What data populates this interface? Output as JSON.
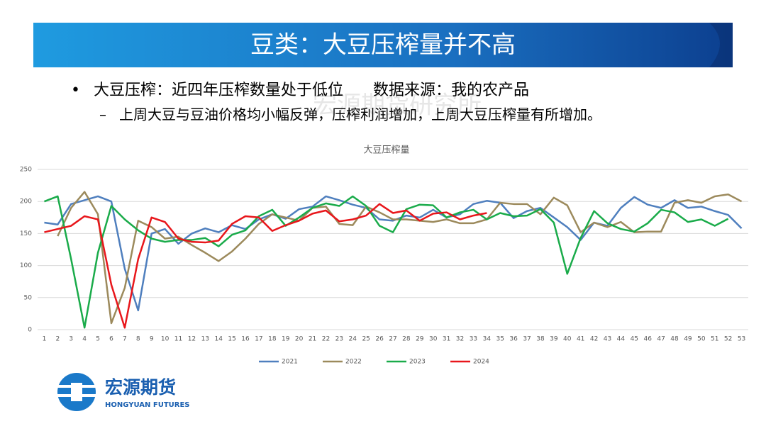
{
  "header": {
    "title": "豆类：大豆压榨量并不高"
  },
  "bullets": {
    "main": "大豆压榨：近四年压榨数量处于低位      数据来源：我的农产品",
    "sub": "上周大豆与豆油价格均小幅反弹，压榨利润增加，上周大豆压榨量有所增加。"
  },
  "watermark": "宏源期货研究所",
  "logo": {
    "name": "宏源期货",
    "english": "HONGYUAN FUTURES"
  },
  "chart_data": {
    "type": "line",
    "title": "大豆压榨量",
    "categories": [
      1,
      2,
      3,
      4,
      5,
      6,
      7,
      8,
      9,
      10,
      11,
      12,
      13,
      14,
      15,
      16,
      17,
      18,
      19,
      20,
      21,
      22,
      23,
      24,
      25,
      26,
      27,
      28,
      29,
      30,
      31,
      32,
      33,
      34,
      35,
      36,
      37,
      38,
      39,
      40,
      41,
      42,
      43,
      44,
      45,
      46,
      47,
      48,
      49,
      50,
      51,
      52,
      53
    ],
    "ylim": [
      0,
      250
    ],
    "yticks": [
      0,
      50,
      100,
      150,
      200,
      250
    ],
    "grid": true,
    "legend": "bottom",
    "series": [
      {
        "name": "2021",
        "color": "#4f7fbe",
        "values": [
          167,
          164,
          196,
          202,
          208,
          200,
          95,
          30,
          150,
          157,
          134,
          150,
          158,
          152,
          163,
          157,
          172,
          180,
          173,
          188,
          192,
          208,
          202,
          195,
          190,
          172,
          170,
          178,
          175,
          187,
          175,
          180,
          196,
          201,
          198,
          174,
          185,
          190,
          175,
          160,
          140,
          167,
          162,
          190,
          207,
          195,
          190,
          202,
          190,
          192,
          185,
          179,
          158
        ]
      },
      {
        "name": "2022",
        "color": "#9c8a5c",
        "values": [
          null,
          146,
          190,
          215,
          180,
          10,
          65,
          170,
          160,
          142,
          145,
          132,
          120,
          107,
          122,
          142,
          165,
          180,
          175,
          170,
          190,
          192,
          165,
          163,
          192,
          183,
          172,
          172,
          170,
          168,
          172,
          166,
          166,
          172,
          198,
          196,
          196,
          180,
          206,
          194,
          152,
          167,
          160,
          168,
          152,
          153,
          153,
          198,
          202,
          198,
          208,
          211,
          200
        ]
      },
      {
        "name": "2023",
        "color": "#1aab4a",
        "values": [
          200,
          208,
          110,
          3,
          120,
          193,
          172,
          155,
          142,
          137,
          140,
          140,
          143,
          130,
          148,
          155,
          177,
          187,
          162,
          175,
          190,
          197,
          193,
          208,
          193,
          162,
          152,
          188,
          195,
          194,
          175,
          183,
          187,
          172,
          182,
          177,
          178,
          188,
          167,
          87,
          143,
          185,
          166,
          157,
          153,
          166,
          187,
          183,
          168,
          172,
          162,
          173,
          null
        ]
      },
      {
        "name": "2024",
        "color": "#e8161b",
        "values": [
          152,
          157,
          162,
          177,
          172,
          70,
          3,
          110,
          175,
          168,
          142,
          137,
          136,
          139,
          165,
          177,
          175,
          154,
          163,
          170,
          181,
          186,
          169,
          172,
          178,
          196,
          182,
          186,
          170,
          181,
          183,
          172,
          178,
          182,
          null,
          null,
          null,
          null,
          null,
          null,
          null,
          null,
          null,
          null,
          null,
          null,
          null,
          null,
          null,
          null,
          null,
          null,
          null
        ]
      }
    ]
  }
}
